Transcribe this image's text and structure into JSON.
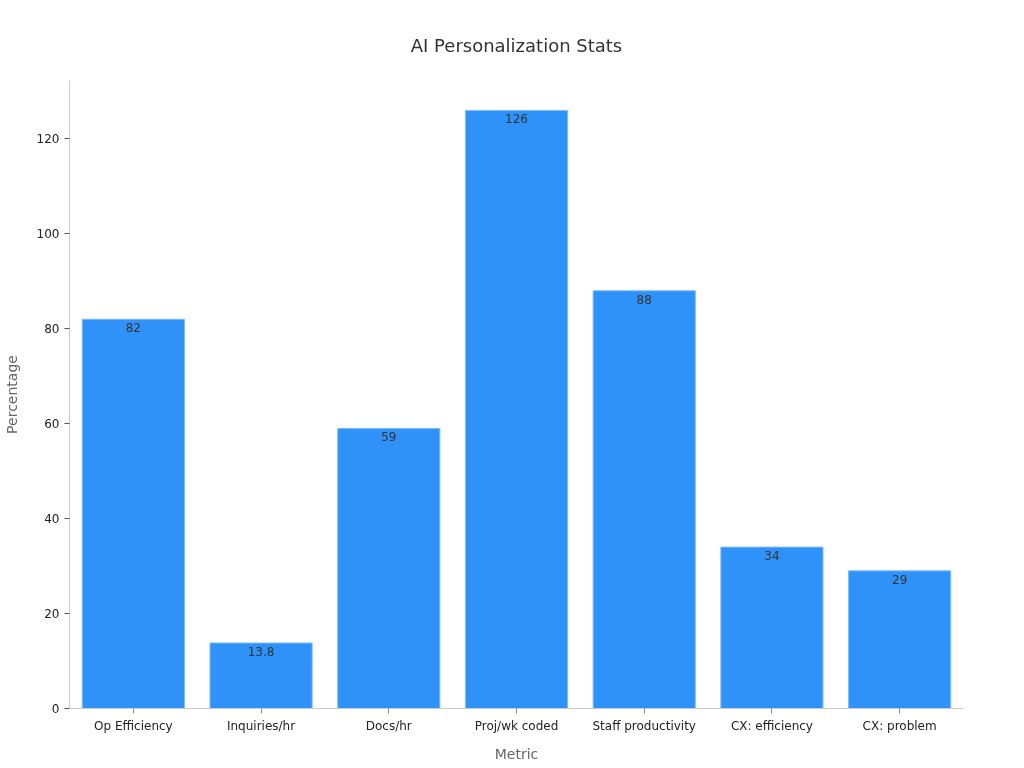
{
  "chart_data": {
    "type": "bar",
    "title": "AI Personalization Stats",
    "xlabel": "Metric",
    "ylabel": "Percentage",
    "categories": [
      "Op Efficiency",
      "Inquiries/hr",
      "Docs/hr",
      "Proj/wk coded",
      "Staff productivity",
      "CX: efficiency",
      "CX: problem"
    ],
    "values": [
      82,
      13.8,
      59,
      126,
      88,
      34,
      29
    ],
    "color": "#2f92f8",
    "ylim": [
      0,
      132.3
    ],
    "yticks": [
      0,
      20,
      40,
      60,
      80,
      100,
      120
    ],
    "data_labels": true
  }
}
